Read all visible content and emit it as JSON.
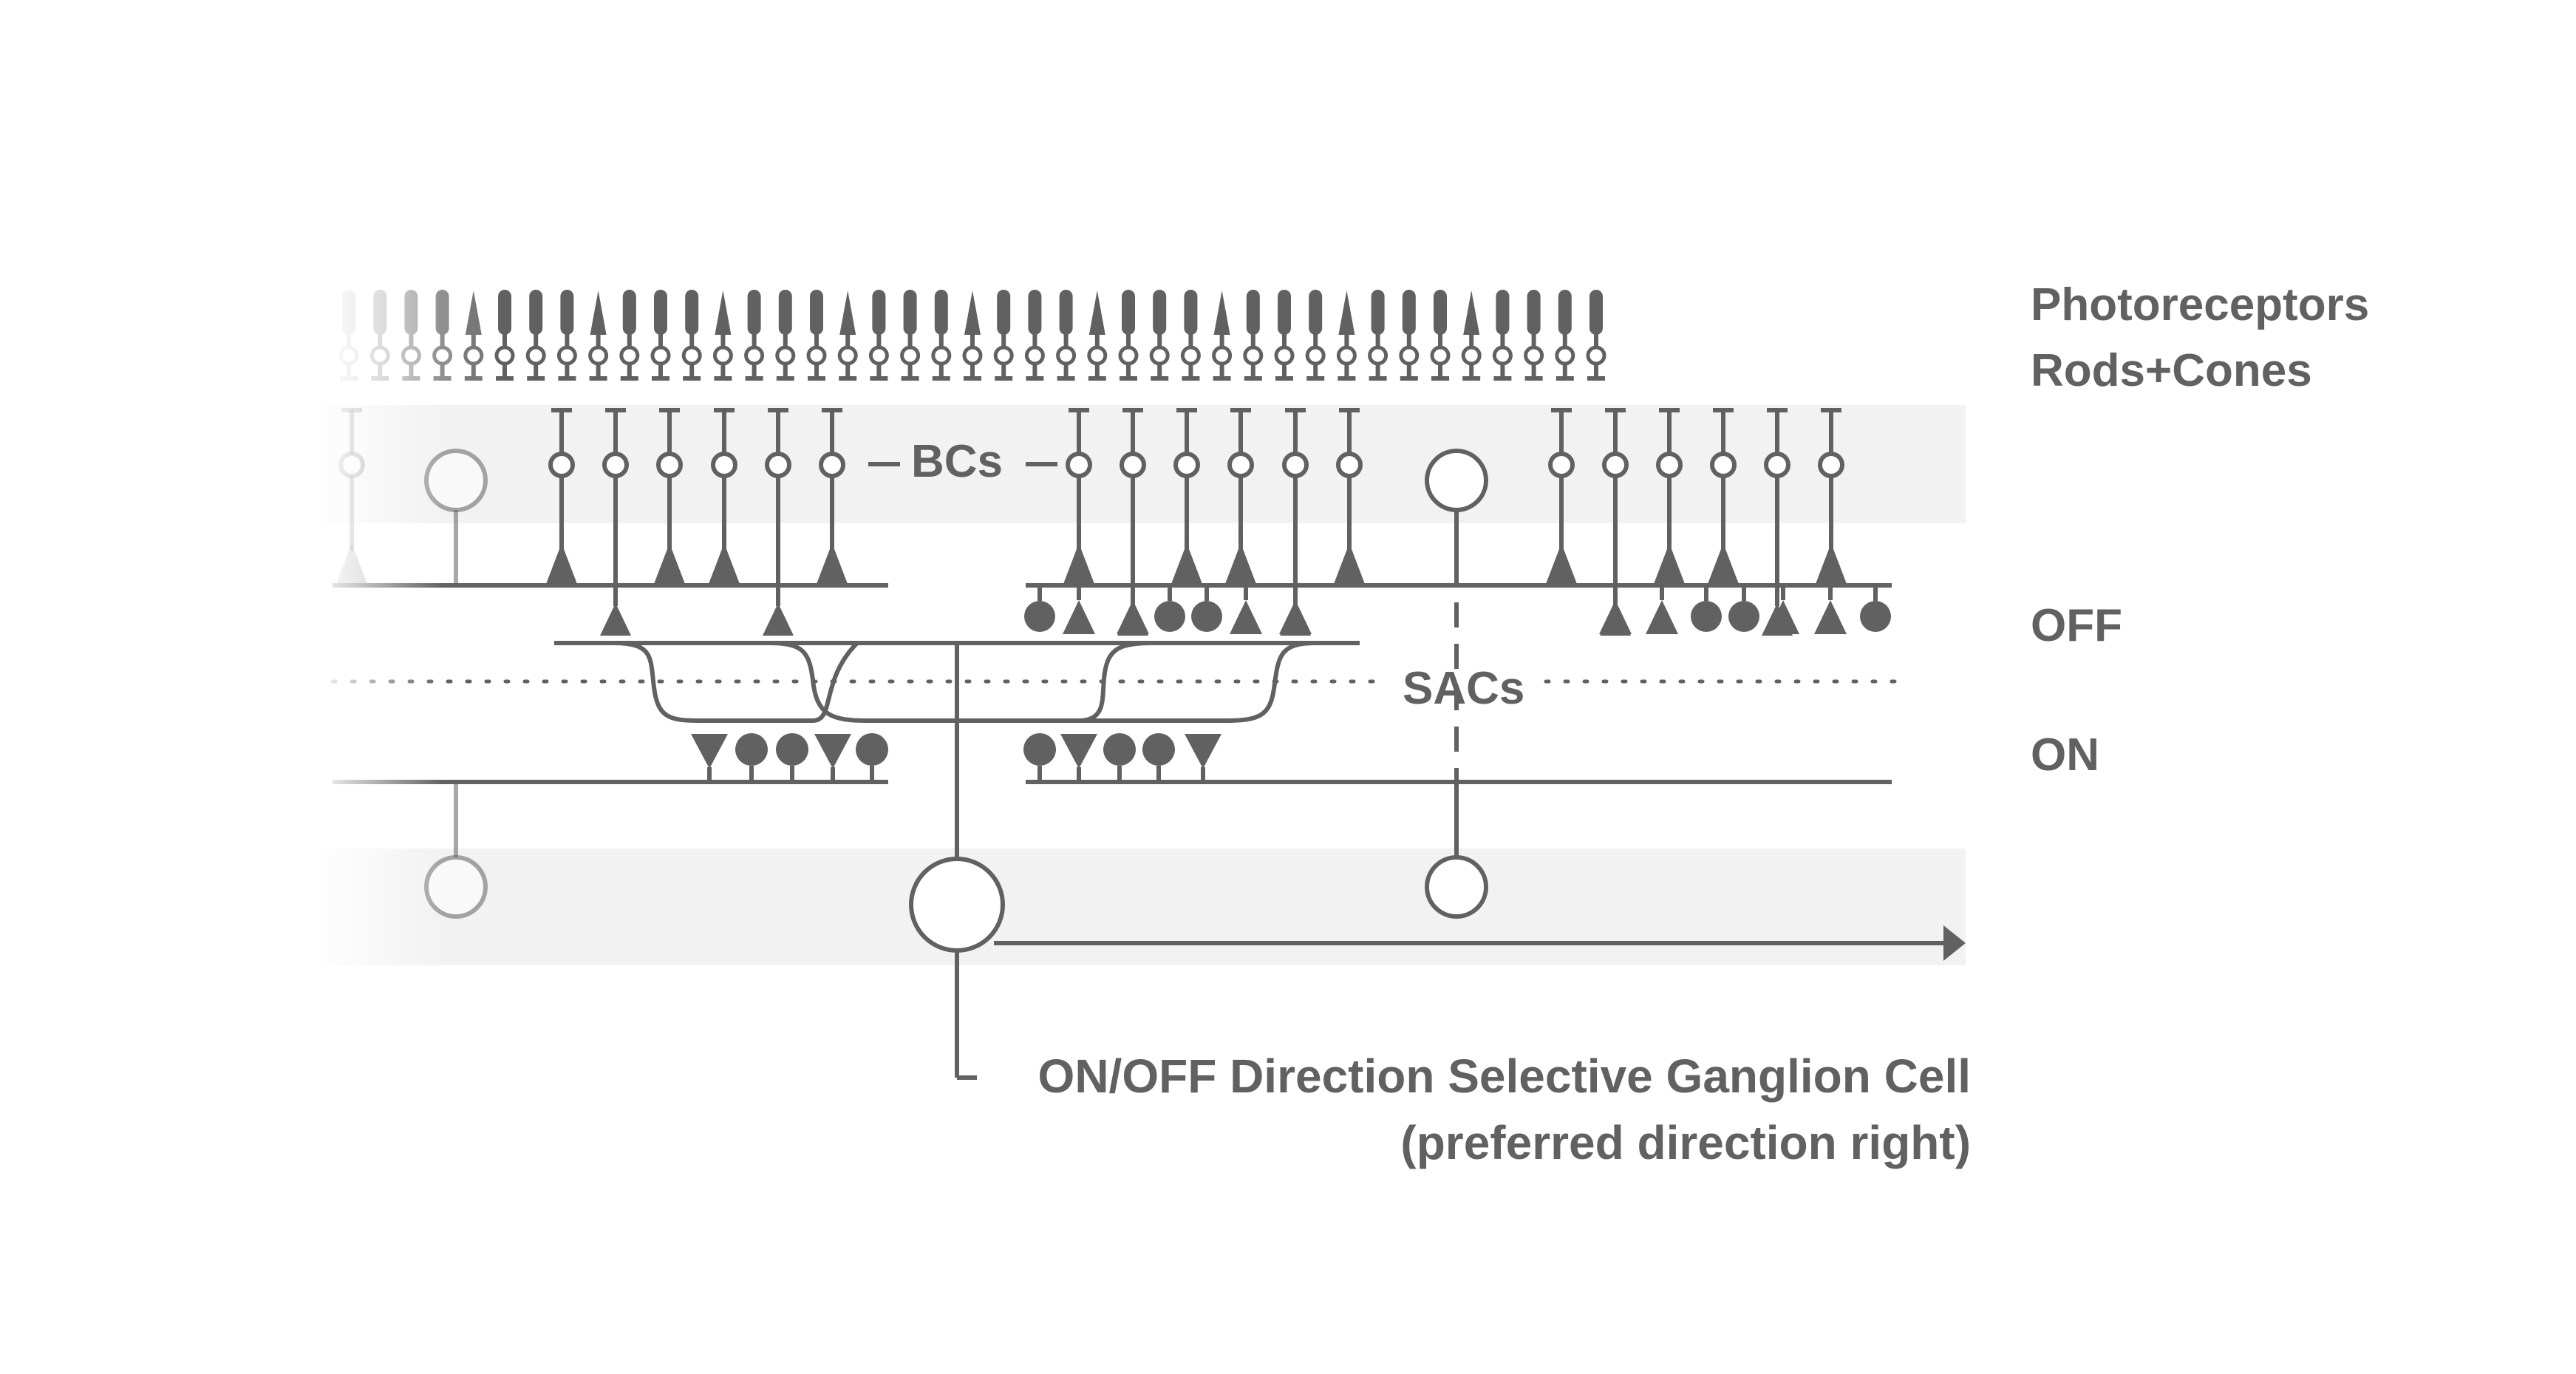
{
  "labels": {
    "photoreceptors": "Photoreceptors",
    "rods_cones": "Rods+Cones",
    "bcs": "BCs",
    "off": "OFF",
    "on": "ON",
    "sacs": "SACs",
    "dsgc_title": "ON/OFF Direction Selective Ganglion Cell",
    "dsgc_subtitle": "(preferred direction right)"
  },
  "colors": {
    "ink": "#616161",
    "band": "#f2f2f2",
    "background": "#ffffff"
  },
  "photoreceptors": {
    "count": 41,
    "cone_pattern": [
      0,
      0,
      0,
      0,
      1,
      0,
      0,
      0,
      1,
      0,
      0,
      0,
      1,
      0,
      0,
      0,
      1,
      0,
      0,
      0,
      1,
      0,
      0,
      0,
      1,
      0,
      0,
      0,
      1,
      0,
      0,
      0,
      1,
      0,
      0,
      0,
      1,
      0,
      0,
      0,
      0
    ]
  },
  "bipolar_cells": {
    "off_left": [
      "off",
      "on",
      "off",
      "off",
      "on",
      "off"
    ],
    "off_middle": [
      "off",
      "on",
      "off",
      "off",
      "on",
      "off"
    ],
    "off_right": [
      "off",
      "on",
      "off",
      "off",
      "on",
      "off"
    ]
  },
  "sac_synapses": {
    "off_left": [
      "triangle",
      "triangle"
    ],
    "off_middle": [
      "circle",
      "triangle",
      "triangle",
      "circle",
      "circle",
      "triangle",
      "triangle"
    ],
    "off_right": [
      "triangle",
      "triangle",
      "circle",
      "circle",
      "triangle",
      "triangle",
      "circle"
    ],
    "on_left": [
      "triangle-down",
      "circle",
      "circle",
      "triangle-down",
      "circle"
    ],
    "on_middle": [
      "circle",
      "triangle-down",
      "circle",
      "circle",
      "triangle-down"
    ]
  },
  "arrow_direction": "right"
}
